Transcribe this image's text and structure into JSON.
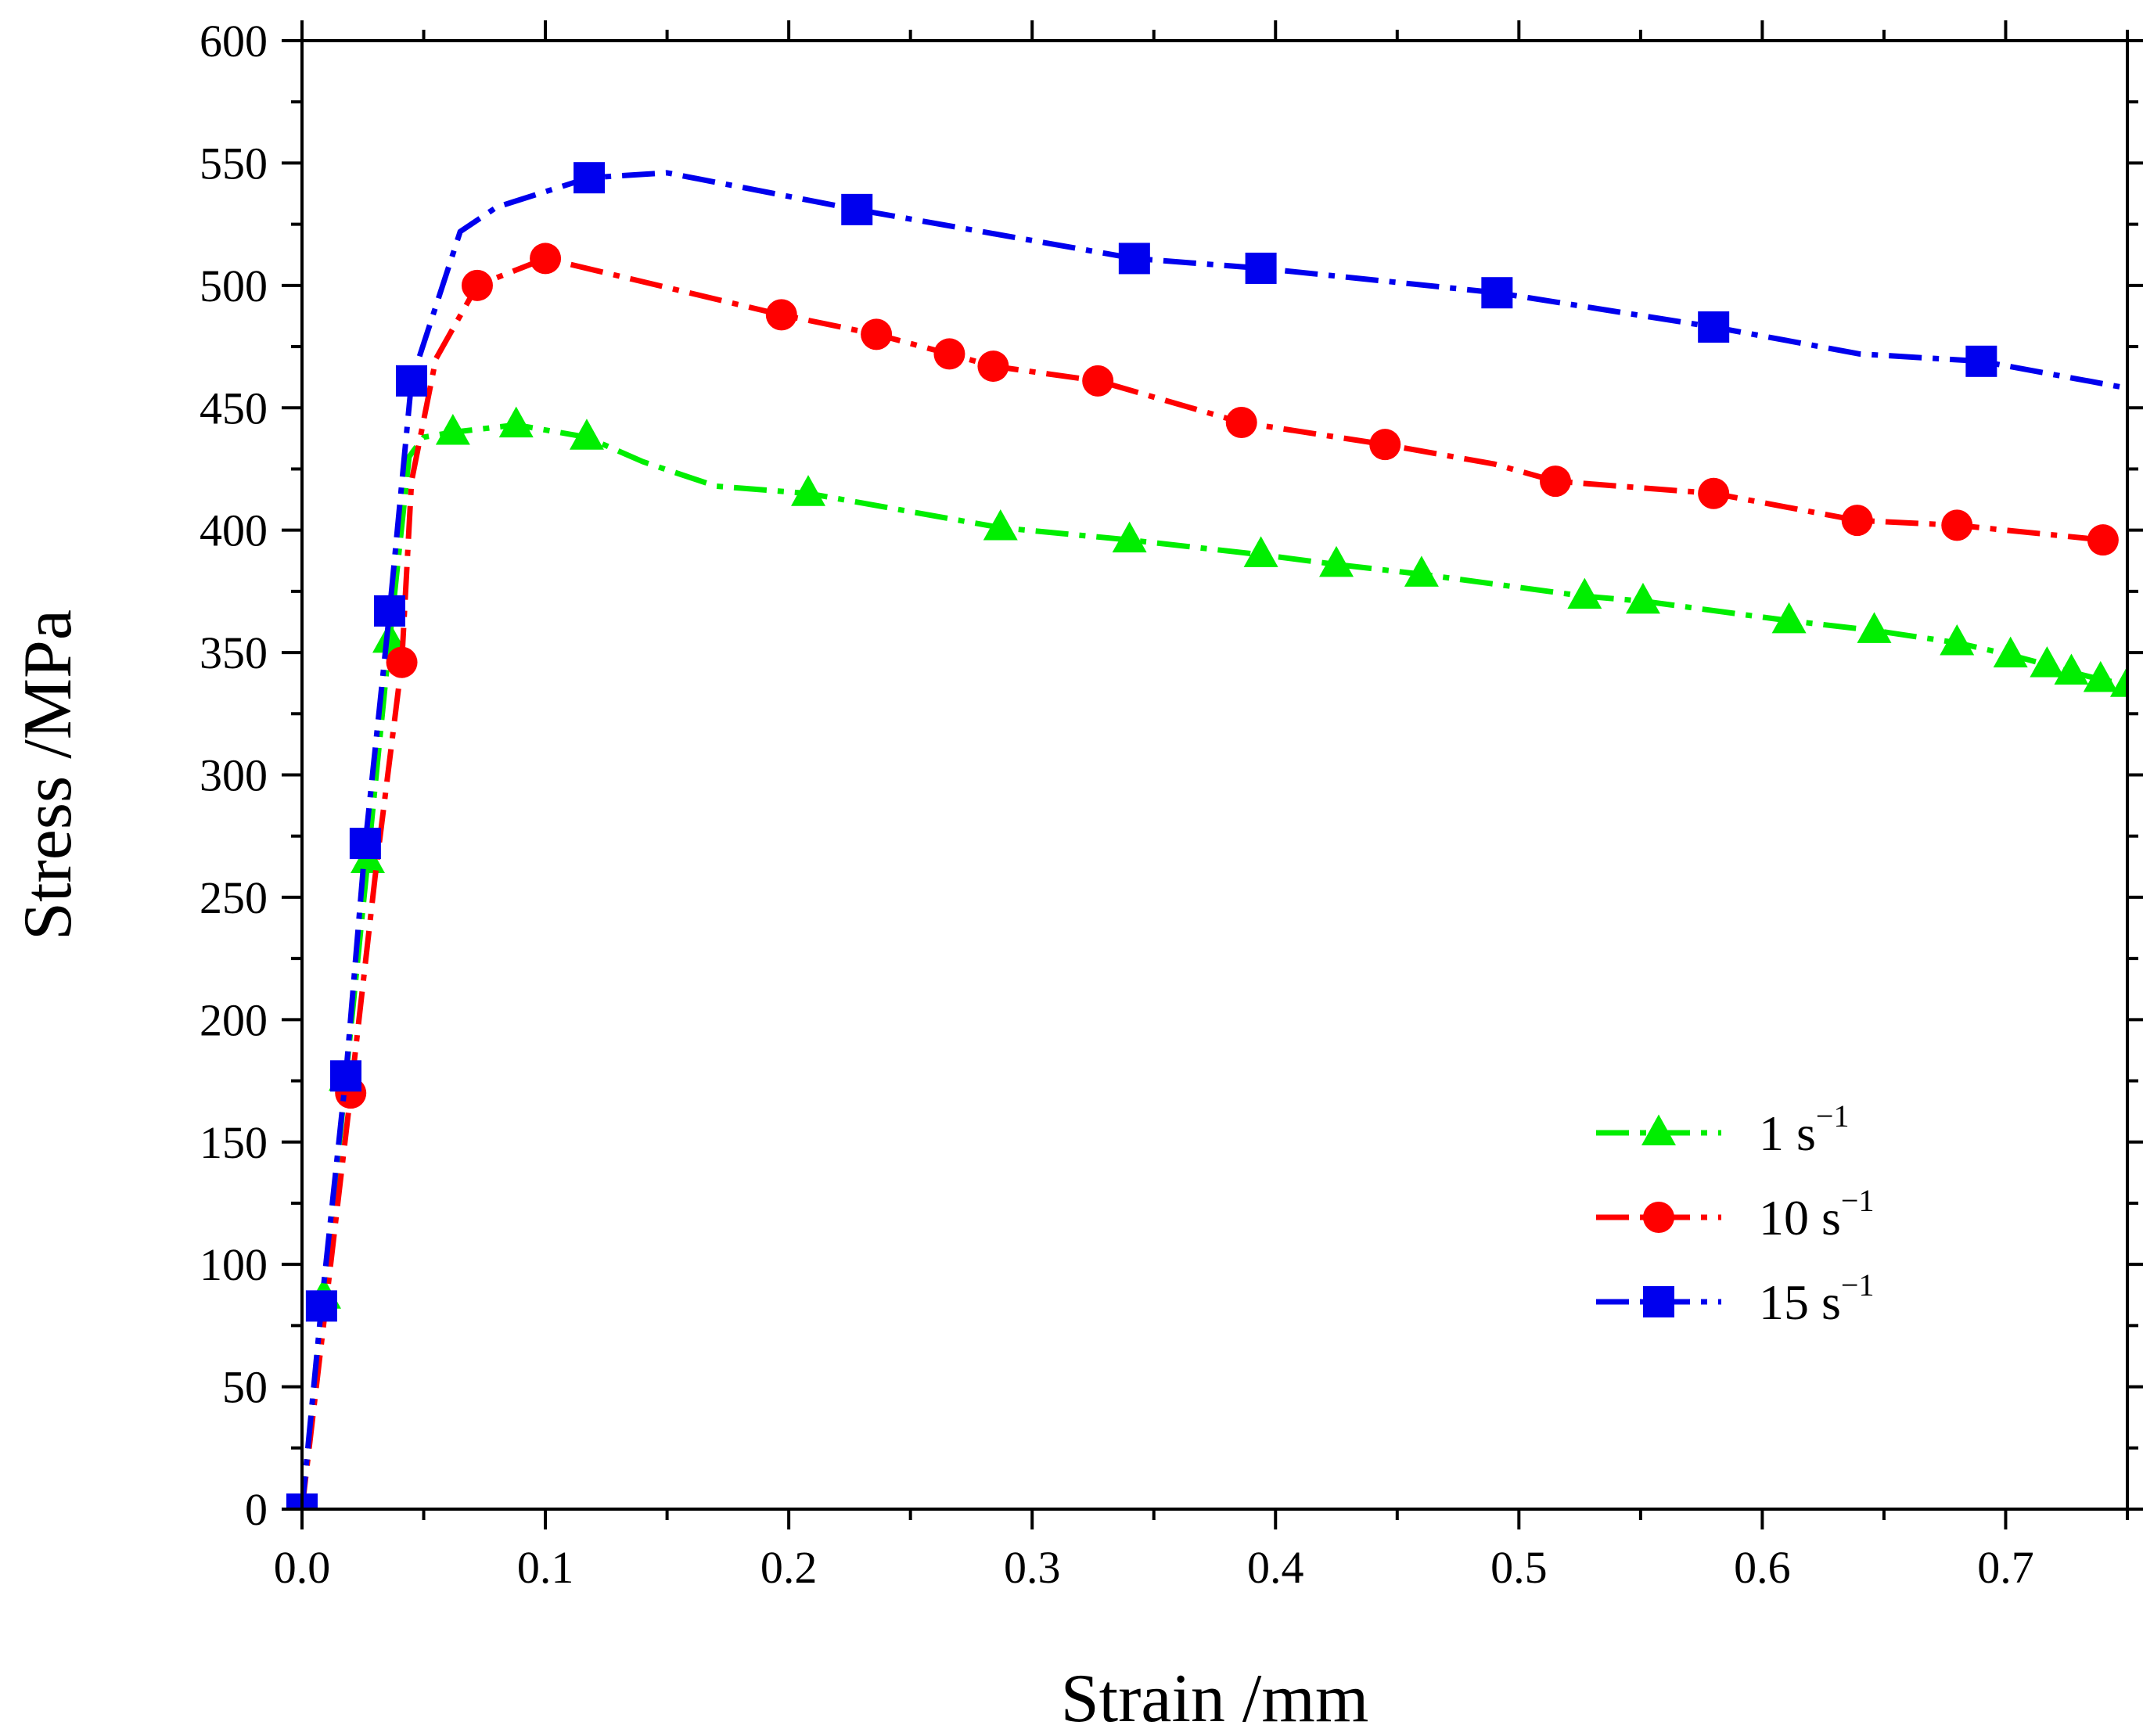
{
  "chart_data": {
    "type": "line",
    "title": "",
    "xlabel": "Strain /mm",
    "ylabel": "Stress /MPa",
    "xlim": [
      0,
      0.75
    ],
    "ylim": [
      0,
      600
    ],
    "xticks": [
      0.0,
      0.1,
      0.2,
      0.3,
      0.4,
      0.5,
      0.6,
      0.7
    ],
    "xtick_labels": [
      "0.0",
      "0.1",
      "0.2",
      "0.3",
      "0.4",
      "0.5",
      "0.6",
      "0.7"
    ],
    "yticks": [
      0,
      50,
      100,
      150,
      200,
      250,
      300,
      350,
      400,
      450,
      500,
      550,
      600
    ],
    "ytick_labels": [
      "0",
      "50",
      "100",
      "150",
      "200",
      "250",
      "300",
      "350",
      "400",
      "450",
      "500",
      "550",
      "600"
    ],
    "legend_position": "bottom-right",
    "series": [
      {
        "name": "1 s",
        "name_sup": "−1",
        "color": "#00ee00",
        "marker": "triangle",
        "line_points": [
          [
            0,
            0
          ],
          [
            0.009,
            87
          ],
          [
            0.018,
            176
          ],
          [
            0.027,
            265
          ],
          [
            0.036,
            355
          ],
          [
            0.044,
            430
          ],
          [
            0.05,
            438
          ],
          [
            0.062,
            440
          ],
          [
            0.088,
            443
          ],
          [
            0.117,
            438
          ],
          [
            0.14,
            428
          ],
          [
            0.17,
            418
          ],
          [
            0.208,
            415
          ],
          [
            0.287,
            401
          ],
          [
            0.34,
            396
          ],
          [
            0.394,
            390
          ],
          [
            0.425,
            386
          ],
          [
            0.46,
            382
          ],
          [
            0.527,
            373
          ],
          [
            0.551,
            371
          ],
          [
            0.611,
            363
          ],
          [
            0.646,
            359
          ],
          [
            0.68,
            354
          ],
          [
            0.702,
            349
          ],
          [
            0.717,
            345
          ],
          [
            0.727,
            342
          ],
          [
            0.739,
            339
          ],
          [
            0.75,
            337
          ]
        ],
        "marker_points": [
          [
            0.009,
            87
          ],
          [
            0.018,
            176
          ],
          [
            0.027,
            265
          ],
          [
            0.036,
            355
          ],
          [
            0.062,
            440
          ],
          [
            0.088,
            443
          ],
          [
            0.117,
            438
          ],
          [
            0.208,
            415
          ],
          [
            0.287,
            401
          ],
          [
            0.34,
            396
          ],
          [
            0.394,
            390
          ],
          [
            0.425,
            386
          ],
          [
            0.46,
            382
          ],
          [
            0.527,
            373
          ],
          [
            0.551,
            371
          ],
          [
            0.611,
            363
          ],
          [
            0.646,
            359
          ],
          [
            0.68,
            354
          ],
          [
            0.702,
            349
          ],
          [
            0.717,
            345
          ],
          [
            0.727,
            342
          ],
          [
            0.739,
            339
          ],
          [
            0.75,
            337
          ]
        ]
      },
      {
        "name": "10 s",
        "name_sup": "−1",
        "color": "#ff0000",
        "marker": "circle",
        "line_points": [
          [
            0,
            0
          ],
          [
            0.01,
            85
          ],
          [
            0.02,
            170
          ],
          [
            0.03,
            258
          ],
          [
            0.041,
            346
          ],
          [
            0.045,
            420
          ],
          [
            0.055,
            470
          ],
          [
            0.072,
            500
          ],
          [
            0.1,
            511
          ],
          [
            0.197,
            488
          ],
          [
            0.236,
            480
          ],
          [
            0.266,
            472
          ],
          [
            0.284,
            467
          ],
          [
            0.327,
            461
          ],
          [
            0.386,
            444
          ],
          [
            0.445,
            435
          ],
          [
            0.49,
            427
          ],
          [
            0.515,
            420
          ],
          [
            0.58,
            415
          ],
          [
            0.639,
            404
          ],
          [
            0.68,
            402
          ],
          [
            0.74,
            396
          ],
          [
            0.75,
            394
          ]
        ],
        "marker_points": [
          [
            0.02,
            170
          ],
          [
            0.041,
            346
          ],
          [
            0.072,
            500
          ],
          [
            0.1,
            511
          ],
          [
            0.197,
            488
          ],
          [
            0.236,
            480
          ],
          [
            0.266,
            472
          ],
          [
            0.284,
            467
          ],
          [
            0.327,
            461
          ],
          [
            0.386,
            444
          ],
          [
            0.445,
            435
          ],
          [
            0.515,
            420
          ],
          [
            0.58,
            415
          ],
          [
            0.639,
            404
          ],
          [
            0.68,
            402
          ],
          [
            0.74,
            396
          ]
        ]
      },
      {
        "name": "15 s",
        "name_sup": "−1",
        "color": "#0000ee",
        "marker": "square",
        "line_points": [
          [
            0,
            0
          ],
          [
            0.008,
            83
          ],
          [
            0.018,
            177
          ],
          [
            0.026,
            272
          ],
          [
            0.036,
            367
          ],
          [
            0.045,
            461
          ],
          [
            0.065,
            522
          ],
          [
            0.08,
            532
          ],
          [
            0.118,
            544
          ],
          [
            0.15,
            546
          ],
          [
            0.228,
            531
          ],
          [
            0.342,
            511
          ],
          [
            0.394,
            507
          ],
          [
            0.491,
            497
          ],
          [
            0.58,
            483
          ],
          [
            0.64,
            472
          ],
          [
            0.69,
            469
          ],
          [
            0.75,
            458
          ]
        ],
        "marker_points": [
          [
            0,
            0
          ],
          [
            0.008,
            83
          ],
          [
            0.018,
            177
          ],
          [
            0.026,
            272
          ],
          [
            0.036,
            367
          ],
          [
            0.045,
            461
          ],
          [
            0.118,
            544
          ],
          [
            0.228,
            531
          ],
          [
            0.342,
            511
          ],
          [
            0.394,
            507
          ],
          [
            0.491,
            497
          ],
          [
            0.58,
            483
          ],
          [
            0.69,
            469
          ]
        ]
      }
    ]
  }
}
